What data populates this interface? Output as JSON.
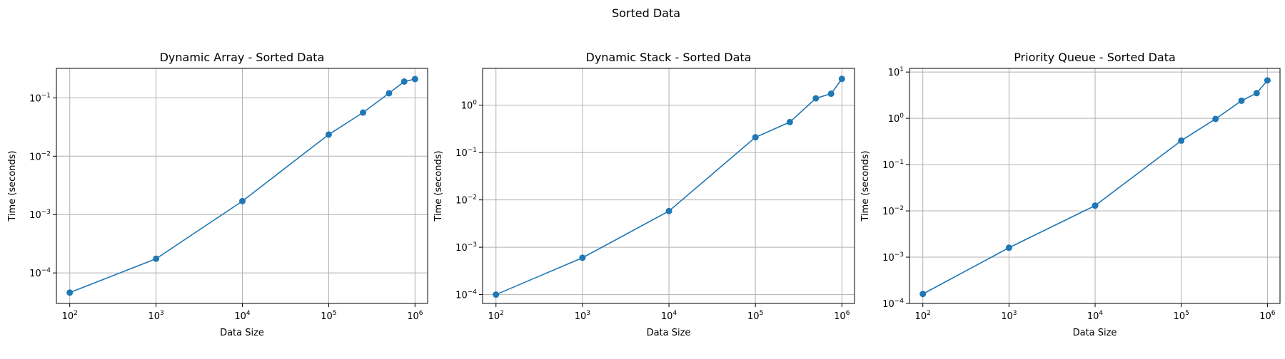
{
  "figure": {
    "suptitle": "Sorted Data",
    "line_color": "#1f77b4"
  },
  "chart_data": [
    {
      "type": "line",
      "title": "Dynamic Array - Sorted Data",
      "xlabel": "Data Size",
      "ylabel": "Time (seconds)",
      "xscale": "log",
      "yscale": "log",
      "grid": true,
      "x": [
        100,
        1000,
        10000,
        100000,
        250000,
        500000,
        750000,
        1000000
      ],
      "series": [
        {
          "values": [
            4.6e-05,
            0.000175,
            0.0017,
            0.0235,
            0.056,
            0.12,
            0.19,
            0.21
          ]
        }
      ],
      "xlim": [
        70,
        1400000
      ],
      "ylim": [
        3e-05,
        0.32
      ],
      "xticks": [
        2,
        3,
        4,
        5,
        6
      ],
      "yticks": [
        -4,
        -3,
        -2,
        -1
      ]
    },
    {
      "type": "line",
      "title": "Dynamic Stack - Sorted Data",
      "xlabel": "Data Size",
      "ylabel": "Time (seconds)",
      "xscale": "log",
      "yscale": "log",
      "grid": true,
      "x": [
        100,
        1000,
        10000,
        100000,
        250000,
        500000,
        750000,
        1000000
      ],
      "series": [
        {
          "values": [
            0.0001,
            0.0006,
            0.0058,
            0.21,
            0.44,
            1.4,
            1.75,
            3.6
          ]
        }
      ],
      "xlim": [
        70,
        1400000
      ],
      "ylim": [
        6.5e-05,
        6.0
      ],
      "xticks": [
        2,
        3,
        4,
        5,
        6
      ],
      "yticks": [
        -4,
        -3,
        -2,
        -1,
        0
      ]
    },
    {
      "type": "line",
      "title": "Priority Queue - Sorted Data",
      "xlabel": "Data Size",
      "ylabel": "Time (seconds)",
      "xscale": "log",
      "yscale": "log",
      "grid": true,
      "x": [
        100,
        1000,
        10000,
        100000,
        250000,
        500000,
        750000,
        1000000
      ],
      "series": [
        {
          "values": [
            0.00016,
            0.0016,
            0.013,
            0.33,
            0.97,
            2.4,
            3.5,
            6.6
          ]
        }
      ],
      "xlim": [
        70,
        1400000
      ],
      "ylim": [
        0.0001,
        12.0
      ],
      "xticks": [
        2,
        3,
        4,
        5,
        6
      ],
      "yticks": [
        -4,
        -3,
        -2,
        -1,
        0,
        1
      ]
    }
  ]
}
